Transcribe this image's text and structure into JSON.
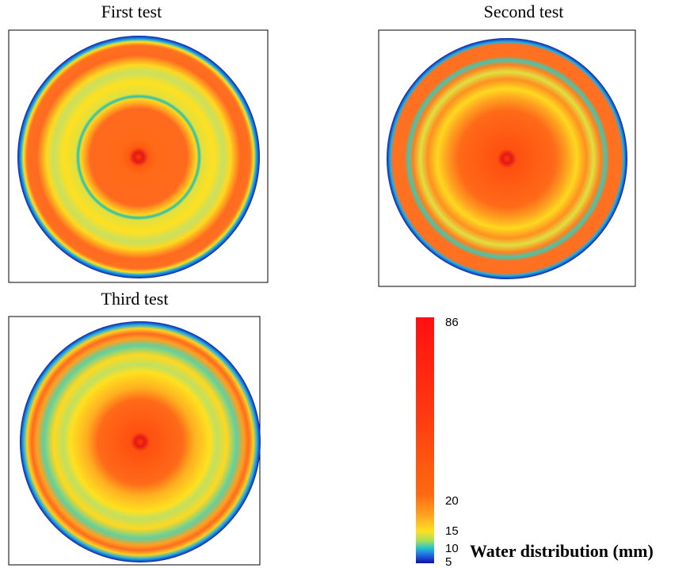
{
  "panels": [
    {
      "title": "First test"
    },
    {
      "title": "Second test"
    },
    {
      "title": "Third test"
    }
  ],
  "colorbar": {
    "label": "Water distribution (mm)",
    "ticks": [
      86,
      20,
      15,
      10,
      5
    ]
  }
}
